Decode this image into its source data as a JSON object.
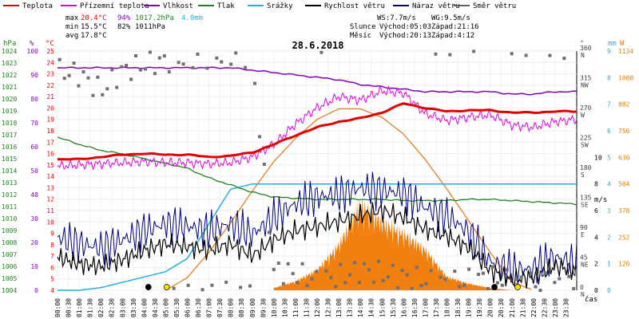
{
  "legend": [
    {
      "label": "Teplota",
      "color": "#e00000"
    },
    {
      "label": "Přízemní teplota",
      "color": "#e000e0"
    },
    {
      "label": "Vlhkost",
      "color": "#8000c0"
    },
    {
      "label": "Tlak",
      "color": "#208020"
    },
    {
      "label": "Srážky",
      "color": "#20b0e0"
    },
    {
      "label": "Rychlost větru",
      "color": "#000000"
    },
    {
      "label": "Náraz větru",
      "color": "#000080"
    },
    {
      "label": "Směr větru",
      "color": "#606060"
    }
  ],
  "stats": {
    "max_label": "max",
    "max_temp": "20.4°C",
    "max_hum": "94%",
    "max_press": "1017.2hPa",
    "max_rain": "4.0mm",
    "min_label": "min",
    "min_temp": "15.5°C",
    "min_hum": "82%",
    "min_press": "1011hPa",
    "avg_label": "avg",
    "avg_temp": "17.8°C",
    "ws": "WS:7.7m/s",
    "wg": "WG:9.5m/s",
    "sun_label": "Slunce",
    "sun_rise": "Východ:05:03",
    "sun_set": "Západ:21:16",
    "moon_label": "Měsíc",
    "moon_rise": "Východ:20:13",
    "moon_set": "Západ:4:12"
  },
  "axis_units": {
    "hpa": "hPa",
    "pct": "%",
    "degc": "°C",
    "deg": "°",
    "mm": "mm",
    "ms": "m/s",
    "w": "W",
    "time": "čas"
  },
  "chart_data": {
    "type": "line",
    "title": "28.6.2018",
    "x_ticks": [
      "00:00",
      "00:30",
      "01:00",
      "01:30",
      "02:00",
      "02:30",
      "03:00",
      "03:30",
      "04:00",
      "04:30",
      "05:00",
      "05:30",
      "06:00",
      "06:30",
      "07:00",
      "07:30",
      "08:00",
      "08:30",
      "09:00",
      "09:30",
      "10:00",
      "10:30",
      "11:00",
      "11:30",
      "12:00",
      "12:30",
      "13:00",
      "13:30",
      "14:00",
      "14:30",
      "15:00",
      "15:30",
      "16:00",
      "16:30",
      "17:00",
      "17:30",
      "18:00",
      "18:30",
      "19:00",
      "19:30",
      "20:00",
      "20:30",
      "21:00",
      "21:30",
      "22:00",
      "22:30",
      "23:00",
      "23:30"
    ],
    "y_axes": {
      "pressure_hpa": {
        "ticks": [
          "1004",
          "1005",
          "1006",
          "1007",
          "1008",
          "1009",
          "1010",
          "1011",
          "1012",
          "1013",
          "1014",
          "1015",
          "1016",
          "1017",
          "1018",
          "1019",
          "1020",
          "1021",
          "1022",
          "1023",
          "1024"
        ],
        "range": [
          1004,
          1024
        ]
      },
      "percent": {
        "ticks": [
          "0",
          "10",
          "20",
          "30",
          "40",
          "50",
          "60",
          "70",
          "80",
          "90",
          "100"
        ],
        "range": [
          0,
          100
        ]
      },
      "temp_c": {
        "ticks": [
          "4",
          "5",
          "6",
          "7",
          "8",
          "9",
          "10",
          "11",
          "12",
          "13",
          "14",
          "15",
          "16",
          "17",
          "18",
          "19",
          "20",
          "21",
          "22",
          "23",
          "24",
          "25"
        ],
        "range": [
          4,
          25
        ]
      },
      "direction_deg": {
        "ticks": [
          {
            "v": 0,
            "l": "0",
            "d": "N"
          },
          {
            "v": 45,
            "l": "45",
            "d": "NE"
          },
          {
            "v": 90,
            "l": "90",
            "d": "E"
          },
          {
            "v": 135,
            "l": "135",
            "d": "SE"
          },
          {
            "v": 180,
            "l": "180",
            "d": "S"
          },
          {
            "v": 225,
            "l": "225",
            "d": "SW"
          },
          {
            "v": 270,
            "l": "270",
            "d": "W"
          },
          {
            "v": 315,
            "l": "315",
            "d": "NW"
          },
          {
            "v": 360,
            "l": "360",
            "d": "N"
          }
        ],
        "range": [
          0,
          360
        ]
      },
      "rain_mm": {
        "ticks": [
          "0",
          "1",
          "2",
          "3",
          "4",
          "5",
          "6",
          "7",
          "8",
          "9"
        ],
        "range": [
          0,
          9
        ]
      },
      "wind_ms": {
        "ticks": [
          "0",
          "2",
          "4",
          "6",
          "8",
          "10"
        ],
        "range": [
          0,
          18
        ]
      },
      "solar_w": {
        "ticks": [
          "0",
          "126",
          "252",
          "378",
          "504",
          "630",
          "756",
          "882",
          "1008",
          "1134"
        ],
        "range": [
          0,
          1134
        ]
      }
    },
    "series": [
      {
        "name": "Teplota",
        "unit": "°C",
        "x": [
          0,
          1,
          2,
          3,
          4,
          5,
          6,
          7,
          8,
          9,
          10,
          11,
          12,
          13,
          14,
          15,
          16,
          17,
          18,
          19,
          20,
          21,
          22,
          23,
          24
        ],
        "values": [
          15.5,
          15.5,
          15.7,
          15.9,
          16.0,
          15.9,
          15.9,
          15.7,
          15.8,
          16.1,
          16.8,
          17.6,
          18.3,
          18.8,
          19.1,
          19.6,
          20.4,
          20.0,
          19.7,
          19.8,
          19.8,
          19.6,
          19.6,
          19.7,
          19.7
        ]
      },
      {
        "name": "Přízemní teplota",
        "unit": "°C",
        "x": [
          0,
          1,
          2,
          3,
          4,
          5,
          6,
          7,
          8,
          9,
          10,
          11,
          12,
          13,
          14,
          15,
          16,
          17,
          18,
          19,
          20,
          21,
          22,
          23,
          24
        ],
        "values": [
          14.9,
          15.0,
          15.1,
          15.2,
          15.3,
          15.2,
          15.2,
          15.1,
          15.2,
          15.7,
          16.8,
          18.6,
          20.0,
          21.0,
          20.7,
          21.5,
          21.3,
          19.5,
          18.9,
          19.2,
          19.4,
          18.5,
          18.3,
          18.8,
          19.0
        ]
      },
      {
        "name": "Vlhkost",
        "unit": "%",
        "x": [
          0,
          2,
          4,
          6,
          8,
          9,
          10,
          11,
          12,
          13,
          14,
          15,
          16,
          17,
          18,
          19,
          20,
          21,
          22,
          23,
          24
        ],
        "values": [
          93,
          93,
          93,
          93,
          93,
          92,
          91,
          90,
          89,
          88,
          86,
          85,
          84,
          83,
          83,
          83,
          83,
          82,
          82,
          83,
          83
        ]
      },
      {
        "name": "Tlak",
        "unit": "hPa",
        "x": [
          0,
          1,
          2,
          3,
          4,
          5,
          6,
          7,
          8,
          9,
          10,
          11,
          12,
          13,
          14,
          15,
          16,
          17,
          18,
          19,
          20,
          21,
          22,
          23,
          24
        ],
        "values": [
          1016.8,
          1016.2,
          1015.7,
          1015.4,
          1015.0,
          1014.6,
          1014.2,
          1013.4,
          1012.8,
          1012.2,
          1011.8,
          1011.7,
          1011.6,
          1011.6,
          1011.6,
          1011.6,
          1011.5,
          1011.5,
          1011.5,
          1011.6,
          1011.6,
          1011.5,
          1011.4,
          1011.3,
          1011.2
        ]
      },
      {
        "name": "Srážky",
        "unit": "mm",
        "x": [
          0,
          1,
          2,
          3,
          4,
          5,
          6,
          7,
          8,
          9,
          10,
          12,
          14,
          16,
          18,
          20,
          22,
          24
        ],
        "values": [
          0,
          0,
          0.1,
          0.3,
          0.5,
          0.7,
          1.2,
          2.5,
          3.8,
          4.0,
          4.0,
          4.0,
          4.0,
          4.0,
          4.0,
          4.0,
          4.0,
          4.0
        ]
      },
      {
        "name": "Rychlost větru",
        "unit": "m/s",
        "x": [
          0,
          1,
          2,
          3,
          4,
          5,
          6,
          7,
          8,
          9,
          10,
          11,
          12,
          13,
          14,
          15,
          16,
          17,
          18,
          19,
          20,
          21,
          22,
          23,
          24
        ],
        "values": [
          2.5,
          2.0,
          1.8,
          2.3,
          3.0,
          3.5,
          3.3,
          3.0,
          3.5,
          2.6,
          3.8,
          4.5,
          4.8,
          5.2,
          5.6,
          6.0,
          5.5,
          4.6,
          4.1,
          3.2,
          1.5,
          0.8,
          1.0,
          1.8,
          1.5
        ]
      },
      {
        "name": "Náraz větru",
        "unit": "m/s",
        "x": [
          0,
          1,
          2,
          3,
          4,
          5,
          6,
          7,
          8,
          9,
          10,
          11,
          12,
          13,
          14,
          15,
          16,
          17,
          18,
          19,
          20,
          21,
          22,
          23,
          24
        ],
        "values": [
          4.0,
          3.5,
          3.2,
          3.8,
          4.5,
          5.0,
          4.8,
          4.5,
          5.0,
          4.2,
          5.5,
          6.5,
          7.0,
          7.2,
          7.7,
          7.5,
          7.3,
          6.2,
          5.6,
          4.4,
          2.2,
          1.5,
          1.6,
          2.5,
          2.0
        ]
      },
      {
        "name": "Směr větru",
        "unit": "°",
        "x": [
          0,
          1,
          2,
          3,
          4,
          5,
          6,
          7,
          8,
          9,
          10,
          11,
          12,
          13,
          14,
          15,
          16,
          17,
          18,
          19,
          20,
          21,
          22,
          23,
          24
        ],
        "values": [
          330,
          325,
          300,
          330,
          340,
          345,
          350,
          352,
          355,
          352,
          30,
          25,
          15,
          20,
          30,
          25,
          20,
          15,
          10,
          15,
          20,
          12,
          10,
          8,
          5
        ]
      },
      {
        "name": "Sluneční záření",
        "unit": "W",
        "x": [
          5,
          6,
          7,
          8,
          9,
          10,
          11,
          12,
          13,
          14,
          15,
          16,
          17,
          18,
          19,
          20,
          21,
          22
        ],
        "values": [
          0,
          60,
          180,
          320,
          470,
          610,
          720,
          810,
          860,
          860,
          820,
          740,
          620,
          480,
          330,
          180,
          40,
          0
        ]
      },
      {
        "name": "Naměřené záření",
        "unit": "W",
        "x": [
          10,
          11,
          12,
          13,
          14,
          15,
          16,
          17,
          18,
          19,
          20,
          21
        ],
        "values": [
          10,
          40,
          90,
          200,
          380,
          300,
          250,
          180,
          60,
          30,
          10,
          0
        ]
      }
    ],
    "markers": [
      {
        "type": "moonset",
        "x": 4.2
      },
      {
        "type": "sunrise",
        "x": 5.05
      },
      {
        "type": "moonrise",
        "x": 20.2
      },
      {
        "type": "sunset",
        "x": 21.27
      }
    ],
    "grid": true
  }
}
